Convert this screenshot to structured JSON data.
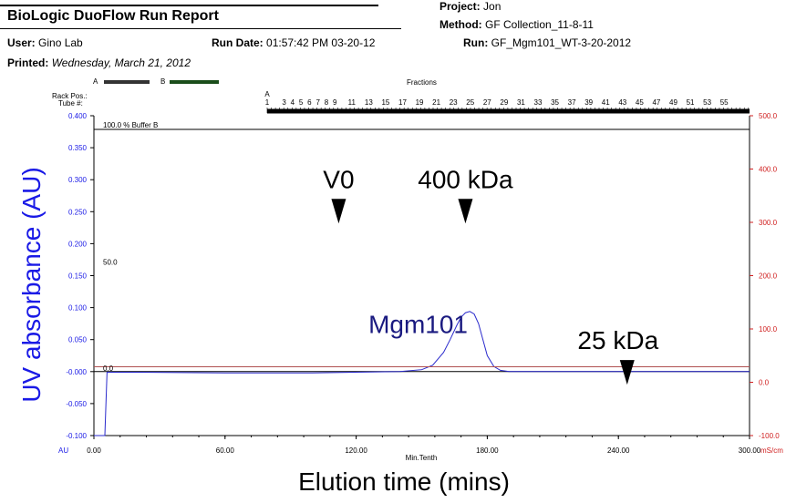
{
  "report": {
    "title": "BioLogic DuoFlow Run Report",
    "project_label": "Project:",
    "project_value": "Jon",
    "method_label": "Method:",
    "method_value": "GF Collection_11-8-11",
    "run_label": "Run:",
    "run_value": "GF_Mgm101_WT-3-20-2012",
    "user_label": "User:",
    "user_value": "Gino Lab",
    "run_date_label": "Run Date:",
    "run_date_value": "01:57:42 PM   03-20-12",
    "printed_label": "Printed:",
    "printed_value": "Wednesday, March 21, 2012"
  },
  "legend": {
    "a_label": "A",
    "b_label": "B",
    "a_color": "#333333",
    "b_color": "#1a4d1a"
  },
  "fractions": {
    "title": "Fractions",
    "rack_label": "Rack Pos.:",
    "tube_label": "Tube #:",
    "rack_letter": "A",
    "tube_numbers": [
      "1",
      "3",
      "4",
      "5",
      "6",
      "7",
      "8",
      "9",
      "11",
      "13",
      "15",
      "17",
      "19",
      "21",
      "23",
      "25",
      "27",
      "29",
      "31",
      "33",
      "35",
      "37",
      "39",
      "41",
      "43",
      "45",
      "47",
      "49",
      "51",
      "53",
      "55"
    ]
  },
  "buffer_label": "100.0  %  Buffer B",
  "level_50_label": "50.0",
  "level_0_label": "0.0",
  "chart_data": {
    "type": "line",
    "xlabel": "Elution time (mins)",
    "xlabel_small": "Min.Tenth",
    "ylabel": "UV absorbance (AU)",
    "ylabel_unit": "AU",
    "y2label_unit": "mS/cm",
    "xlim": [
      0,
      300
    ],
    "ylim": [
      -0.1,
      0.4
    ],
    "y2lim": [
      -100,
      500
    ],
    "x_ticks": [
      "0.00",
      "60.00",
      "120.00",
      "180.00",
      "240.00",
      "300.00"
    ],
    "y_ticks": [
      "0.400",
      "0.350",
      "0.300",
      "0.250",
      "0.200",
      "0.150",
      "0.100",
      "0.050",
      "-0.000",
      "-0.050",
      "-0.100"
    ],
    "y2_ticks": [
      "500.0",
      "400.0",
      "300.0",
      "200.0",
      "100.0",
      "0.0",
      "-100.0"
    ],
    "series": [
      {
        "color": "#2a2acc",
        "x": [
          0,
          3,
          4,
          5,
          6,
          8,
          20,
          60,
          100,
          140,
          150,
          155,
          160,
          163,
          166,
          168,
          170,
          172,
          174,
          176,
          178,
          180,
          183,
          186,
          190,
          200,
          240,
          300
        ],
        "y": [
          -0.1,
          -0.1,
          -0.1,
          -0.1,
          -0.001,
          -0.001,
          -0.001,
          -0.002,
          -0.002,
          0.0,
          0.003,
          0.01,
          0.03,
          0.05,
          0.072,
          0.085,
          0.092,
          0.094,
          0.09,
          0.075,
          0.05,
          0.025,
          0.008,
          0.002,
          0.0,
          0.0,
          0.0,
          0.0
        ]
      },
      {
        "color": "#b05050",
        "x": [
          0,
          300
        ],
        "y2": [
          29,
          29
        ]
      }
    ],
    "buffer_b_percent": 100,
    "annotations": [
      {
        "text": "V0",
        "x": 112,
        "y": 0.27
      },
      {
        "text": "400 kDa",
        "x": 170,
        "y": 0.27
      },
      {
        "text": "Mgm101",
        "x": 140,
        "y": 0.072
      },
      {
        "text": "25 kDa",
        "x": 244,
        "y": 0.018
      }
    ]
  }
}
